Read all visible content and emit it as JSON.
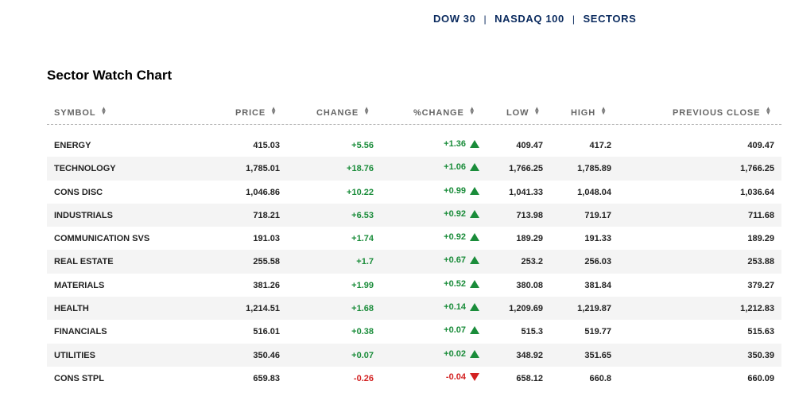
{
  "nav": {
    "items": [
      "DOW 30",
      "NASDAQ 100",
      "SECTORS"
    ],
    "separator": "|"
  },
  "title": "Sector Watch Chart",
  "colors": {
    "up": "#1a8c3a",
    "down": "#d32222",
    "nav": "#0a2a5e"
  },
  "table": {
    "headers": [
      "SYMBOL",
      "PRICE",
      "CHANGE",
      "%CHANGE",
      "LOW",
      "HIGH",
      "PREVIOUS CLOSE"
    ],
    "rows": [
      {
        "symbol": "ENERGY",
        "price": "415.03",
        "change": "+5.56",
        "pct": "+1.36",
        "dir": "up",
        "low": "409.47",
        "high": "417.2",
        "prev": "409.47"
      },
      {
        "symbol": "TECHNOLOGY",
        "price": "1,785.01",
        "change": "+18.76",
        "pct": "+1.06",
        "dir": "up",
        "low": "1,766.25",
        "high": "1,785.89",
        "prev": "1,766.25"
      },
      {
        "symbol": "CONS DISC",
        "price": "1,046.86",
        "change": "+10.22",
        "pct": "+0.99",
        "dir": "up",
        "low": "1,041.33",
        "high": "1,048.04",
        "prev": "1,036.64"
      },
      {
        "symbol": "INDUSTRIALS",
        "price": "718.21",
        "change": "+6.53",
        "pct": "+0.92",
        "dir": "up",
        "low": "713.98",
        "high": "719.17",
        "prev": "711.68"
      },
      {
        "symbol": "COMMUNICATION SVS",
        "price": "191.03",
        "change": "+1.74",
        "pct": "+0.92",
        "dir": "up",
        "low": "189.29",
        "high": "191.33",
        "prev": "189.29"
      },
      {
        "symbol": "REAL ESTATE",
        "price": "255.58",
        "change": "+1.7",
        "pct": "+0.67",
        "dir": "up",
        "low": "253.2",
        "high": "256.03",
        "prev": "253.88"
      },
      {
        "symbol": "MATERIALS",
        "price": "381.26",
        "change": "+1.99",
        "pct": "+0.52",
        "dir": "up",
        "low": "380.08",
        "high": "381.84",
        "prev": "379.27"
      },
      {
        "symbol": "HEALTH",
        "price": "1,214.51",
        "change": "+1.68",
        "pct": "+0.14",
        "dir": "up",
        "low": "1,209.69",
        "high": "1,219.87",
        "prev": "1,212.83"
      },
      {
        "symbol": "FINANCIALS",
        "price": "516.01",
        "change": "+0.38",
        "pct": "+0.07",
        "dir": "up",
        "low": "515.3",
        "high": "519.77",
        "prev": "515.63"
      },
      {
        "symbol": "UTILITIES",
        "price": "350.46",
        "change": "+0.07",
        "pct": "+0.02",
        "dir": "up",
        "low": "348.92",
        "high": "351.65",
        "prev": "350.39"
      },
      {
        "symbol": "CONS STPL",
        "price": "659.83",
        "change": "-0.26",
        "pct": "-0.04",
        "dir": "down",
        "low": "658.12",
        "high": "660.8",
        "prev": "660.09"
      }
    ]
  }
}
